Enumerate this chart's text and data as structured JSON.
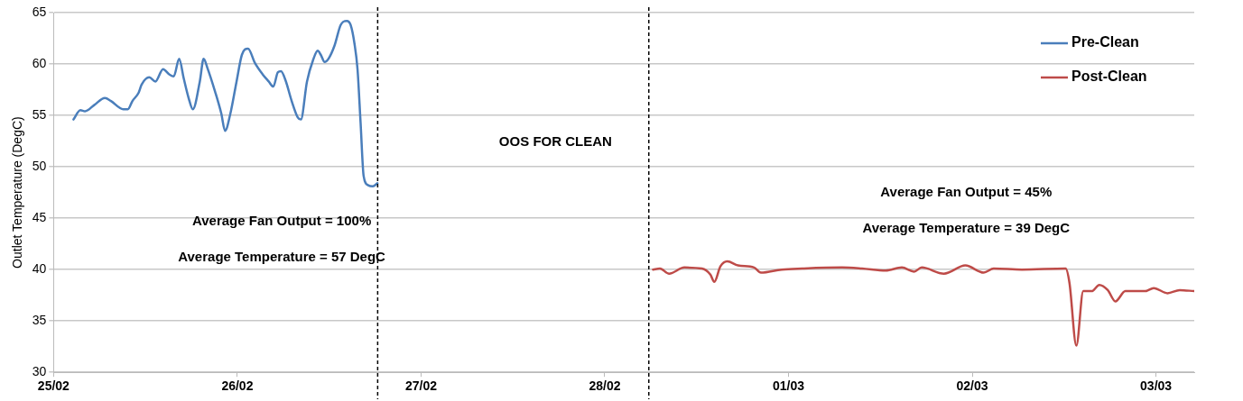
{
  "chart_data": {
    "type": "line",
    "ylabel": "Outlet Temperature (DegC)",
    "ylim": [
      30,
      65
    ],
    "yticks": [
      30,
      35,
      40,
      45,
      50,
      55,
      60,
      65
    ],
    "xlim": [
      "--02-25",
      "--03-03T05:00"
    ],
    "xticks": [
      {
        "value": "--02-25",
        "label": "25/02"
      },
      {
        "value": "--02-26",
        "label": "26/02"
      },
      {
        "value": "--02-27",
        "label": "27/02"
      },
      {
        "value": "--02-28",
        "label": "28/02"
      },
      {
        "value": "--03-01",
        "label": "01/03"
      },
      {
        "value": "--03-02",
        "label": "02/03"
      },
      {
        "value": "--03-03",
        "label": "03/03"
      }
    ],
    "grid": "y",
    "legend": "top right",
    "marker": "none",
    "line_style": "solid",
    "series": [
      {
        "name": "Pre-Clean",
        "color": "#4a7ebb",
        "x": [
          "--02-25T02:36",
          "--02-25T03:30",
          "--02-25T04:06",
          "--02-25T05:18",
          "--02-25T06:42",
          "--02-25T07:30",
          "--02-25T09:06",
          "--02-25T09:42",
          "--02-25T10:18",
          "--02-25T11:06",
          "--02-25T11:30",
          "--02-25T12:30",
          "--02-25T13:18",
          "--02-25T14:18",
          "--02-25T15:06",
          "--02-25T15:42",
          "--02-25T16:24",
          "--02-25T17:00",
          "--02-25T17:36",
          "--02-25T18:12",
          "--02-25T19:06",
          "--02-25T19:36",
          "--02-25T20:06",
          "--02-25T21:06",
          "--02-25T21:54",
          "--02-25T22:24",
          "--02-25T23:06",
          "--02-25T23:54",
          "--02-26T00:36",
          "--02-26T01:24",
          "--02-26T02:18",
          "--02-26T03:18",
          "--02-26T04:06",
          "--02-26T04:42",
          "--02-26T05:18",
          "--02-26T05:42",
          "--02-26T06:18",
          "--02-26T07:06",
          "--02-26T07:54",
          "--02-26T08:18",
          "--02-26T09:06",
          "--02-26T09:54",
          "--02-26T10:30",
          "--02-26T10:54",
          "--02-26T11:24",
          "--02-26T11:54",
          "--02-26T12:42",
          "--02-26T13:30",
          "--02-26T14:18",
          "--02-26T14:48",
          "--02-26T15:18",
          "--02-26T15:42",
          "--02-26T16:06",
          "--02-26T16:30",
          "--02-26T17:06",
          "--02-26T17:42",
          "--02-26T18:18"
        ],
        "values": [
          54.6,
          55.5,
          55.4,
          56.0,
          56.7,
          56.4,
          55.6,
          55.6,
          56.4,
          57.2,
          58.0,
          58.7,
          58.3,
          59.5,
          59.0,
          58.8,
          60.5,
          58.6,
          56.8,
          55.6,
          58.3,
          60.5,
          59.6,
          57.3,
          55.2,
          53.5,
          55.2,
          58.3,
          60.9,
          61.5,
          60.1,
          59.0,
          58.3,
          57.8,
          59.2,
          59.3,
          58.4,
          56.4,
          54.8,
          54.6,
          58.3,
          60.4,
          61.3,
          60.9,
          60.2,
          60.5,
          61.8,
          63.8,
          64.2,
          63.8,
          62.0,
          59.5,
          54.3,
          49.1,
          48.2,
          48.1,
          48.4
        ]
      },
      {
        "name": "Post-Clean",
        "color": "#be4b48",
        "x": [
          "--02-28T06:18",
          "--02-28T07:12",
          "--02-28T08:24",
          "--02-28T10:24",
          "--02-28T12:42",
          "--02-28T13:48",
          "--02-28T14:18",
          "--02-28T15:06",
          "--02-28T16:00",
          "--02-28T17:24",
          "--02-28T19:30",
          "--02-28T20:24",
          "--02-28T23:06",
          "--03-01T01:48",
          "--03-01T07:00",
          "--03-01T09:36",
          "--03-01T12:42",
          "--03-01T14:48",
          "--03-01T16:24",
          "--03-01T17:24",
          "--03-01T20:18",
          "--03-01T23:06",
          "--03-02T01:30",
          "--03-02T02:48",
          "--03-02T06:30",
          "--03-02T12:12",
          "--03-02T12:42",
          "--03-02T13:36",
          "--03-02T14:30",
          "--03-02T15:36",
          "--03-02T16:36",
          "--03-02T17:42",
          "--03-02T18:42",
          "--03-02T20:00",
          "--03-02T22:36",
          "--03-02T23:42",
          "--03-03T01:30",
          "--03-03T03:06",
          "--03-03T05:00"
        ],
        "values": [
          40.0,
          40.1,
          39.6,
          40.2,
          40.1,
          39.5,
          38.8,
          40.3,
          40.8,
          40.4,
          40.2,
          39.7,
          40.0,
          40.1,
          40.2,
          40.1,
          39.9,
          40.2,
          39.8,
          40.2,
          39.6,
          40.4,
          39.7,
          40.1,
          40.0,
          40.1,
          38.7,
          32.6,
          37.9,
          37.9,
          38.5,
          38.0,
          36.9,
          37.9,
          37.9,
          38.2,
          37.7,
          38.0,
          37.9
        ]
      }
    ],
    "ref_lines": [
      {
        "axis": "x",
        "value": "--02-26T18:20",
        "color": "#000000",
        "line_style": "dashed"
      },
      {
        "axis": "x",
        "value": "--02-28T05:45",
        "color": "#000000",
        "line_style": "dashed"
      }
    ],
    "annotations": [
      "Average Fan Output = 100%",
      "Average Temperature = 57 DegC",
      "OOS FOR CLEAN",
      "Average Fan Output = 45%",
      "Average Temperature = 39 DegC"
    ]
  }
}
